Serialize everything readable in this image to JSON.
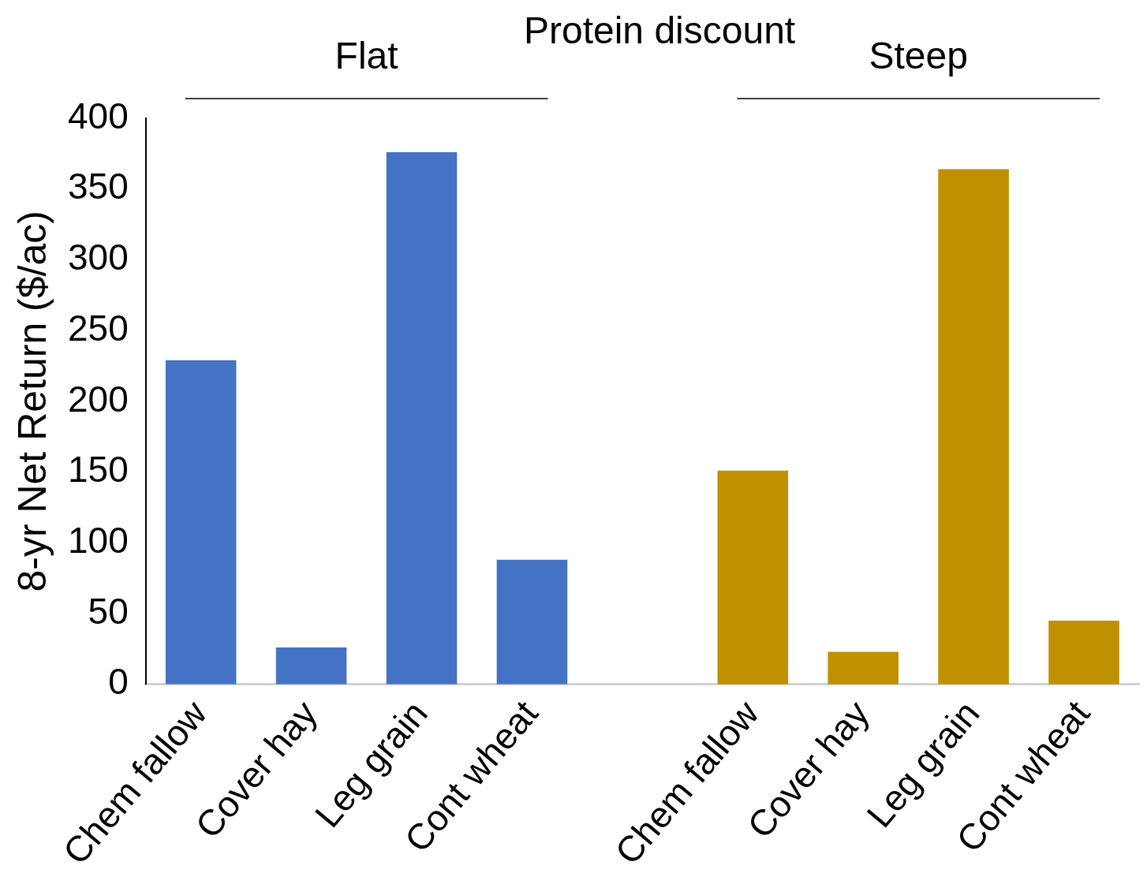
{
  "chart_data": {
    "type": "bar",
    "title": "Protein discount",
    "ylabel": "8-yr Net Return ($/ac)",
    "categories": [
      "Chem fallow",
      "Cover hay",
      "Leg grain",
      "Cont wheat",
      null,
      "Chem fallow",
      "Cover hay",
      "Leg grain",
      "Cont wheat"
    ],
    "series": [
      {
        "name": "Flat",
        "color": "#4472c4",
        "values": [
          229,
          26,
          376,
          88,
          null,
          null,
          null,
          null,
          null
        ]
      },
      {
        "name": "Steep",
        "color": "#bf9000",
        "values": [
          null,
          null,
          null,
          null,
          null,
          151,
          23,
          364,
          45
        ]
      }
    ],
    "ylim": [
      0,
      400
    ],
    "yticks": [
      0,
      50,
      100,
      150,
      200,
      250,
      300,
      350,
      400
    ],
    "grid": false,
    "legend": false
  }
}
